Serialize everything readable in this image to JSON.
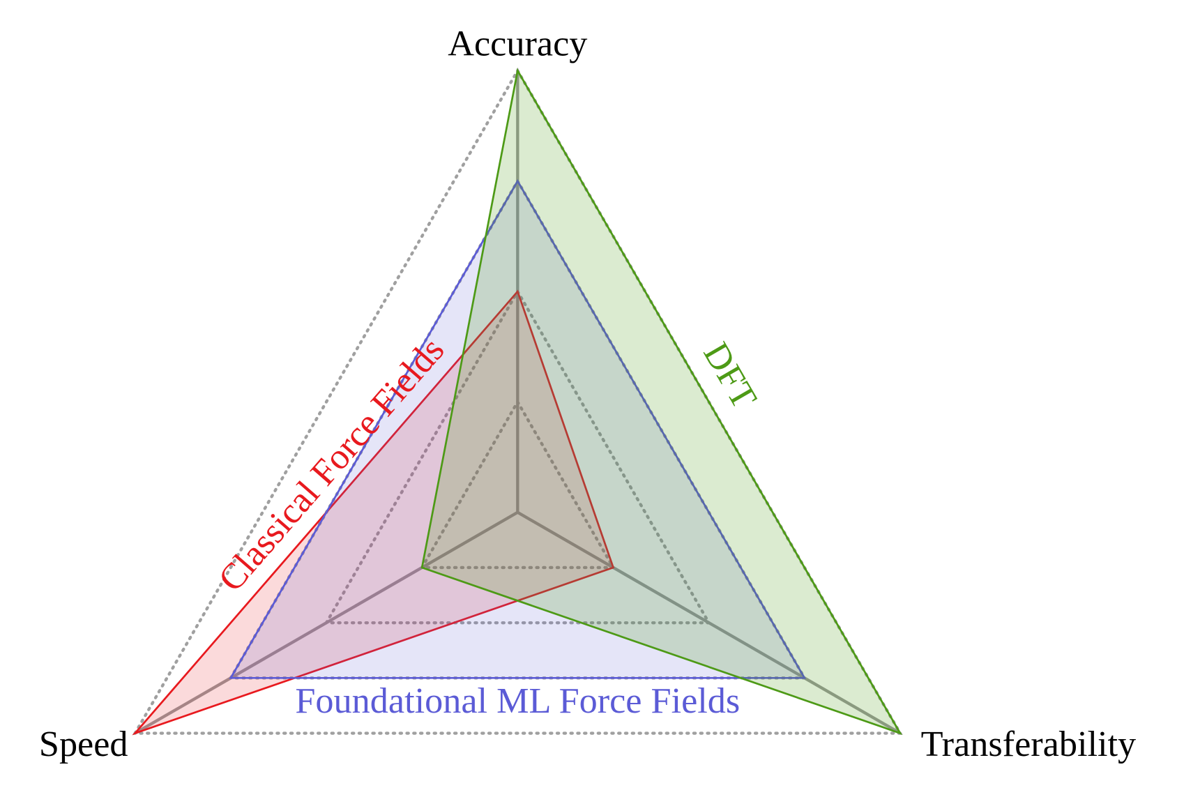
{
  "chart_data": {
    "type": "radar",
    "axes": [
      "Accuracy",
      "Transferability",
      "Speed"
    ],
    "rlim": [
      0,
      1
    ],
    "rticks": [
      0.25,
      0.5,
      0.75,
      1
    ],
    "series": [
      {
        "name": "Classical Force Fields",
        "color": "#e8191e",
        "values": [
          0.5,
          0.25,
          1
        ]
      },
      {
        "name": "Foundational ML Force Fields",
        "color": "#5b5bd6",
        "values": [
          0.75,
          0.75,
          0.75
        ]
      },
      {
        "name": "DFT",
        "color": "#4d9a16",
        "values": [
          1,
          1,
          0.25
        ]
      }
    ]
  }
}
